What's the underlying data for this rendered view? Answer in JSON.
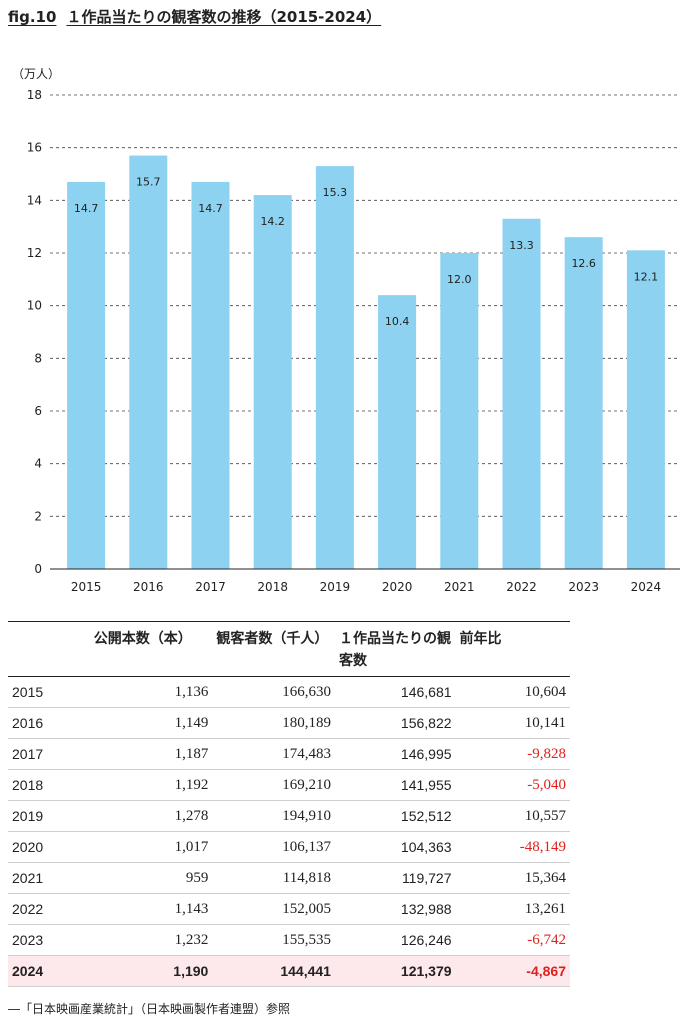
{
  "figure": {
    "number": "fig.10",
    "title": "１作品当たりの観客数の推移（2015-2024）"
  },
  "chart_data": {
    "type": "bar",
    "unit_label": "（万人）",
    "categories": [
      "2015",
      "2016",
      "2017",
      "2018",
      "2019",
      "2020",
      "2021",
      "2022",
      "2023",
      "2024"
    ],
    "values": [
      14.7,
      15.7,
      14.7,
      14.2,
      15.3,
      10.4,
      12.0,
      13.3,
      12.6,
      12.1
    ],
    "value_labels": [
      "14.7",
      "15.7",
      "14.7",
      "14.2",
      "15.3",
      "10.4",
      "12.0",
      "13.3",
      "12.6",
      "12.1"
    ],
    "ylim": [
      0,
      18
    ],
    "yticks": [
      "0",
      "2",
      "4",
      "6",
      "8",
      "10",
      "12",
      "14",
      "16",
      "18"
    ],
    "grid": true,
    "bar_color": "#8dd2f1"
  },
  "table": {
    "headers": [
      "",
      "公開本数（本）",
      "観客者数（千人）",
      "１作品当たりの観客数",
      "前年比"
    ],
    "rows": [
      {
        "year": "2015",
        "releases": "1,136",
        "audience": "166,630",
        "per_film": "146,681",
        "yoy": "10,604",
        "negative": false
      },
      {
        "year": "2016",
        "releases": "1,149",
        "audience": "180,189",
        "per_film": "156,822",
        "yoy": "10,141",
        "negative": false
      },
      {
        "year": "2017",
        "releases": "1,187",
        "audience": "174,483",
        "per_film": "146,995",
        "yoy": "-9,828",
        "negative": true
      },
      {
        "year": "2018",
        "releases": "1,192",
        "audience": "169,210",
        "per_film": "141,955",
        "yoy": "-5,040",
        "negative": true
      },
      {
        "year": "2019",
        "releases": "1,278",
        "audience": "194,910",
        "per_film": "152,512",
        "yoy": "10,557",
        "negative": false
      },
      {
        "year": "2020",
        "releases": "1,017",
        "audience": "106,137",
        "per_film": "104,363",
        "yoy": "-48,149",
        "negative": true
      },
      {
        "year": "2021",
        "releases": "959",
        "audience": "114,818",
        "per_film": "119,727",
        "yoy": "15,364",
        "negative": false
      },
      {
        "year": "2022",
        "releases": "1,143",
        "audience": "152,005",
        "per_film": "132,988",
        "yoy": "13,261",
        "negative": false
      },
      {
        "year": "2023",
        "releases": "1,232",
        "audience": "155,535",
        "per_film": "126,246",
        "yoy": "-6,742",
        "negative": true
      },
      {
        "year": "2024",
        "releases": "1,190",
        "audience": "144,441",
        "per_film": "121,379",
        "yoy": "-4,867",
        "negative": true
      }
    ],
    "highlight_color": "#fde8ec",
    "negative_color": "#e0201c"
  },
  "source": "―「日本映画産業統計」（日本映画製作者連盟）参照"
}
